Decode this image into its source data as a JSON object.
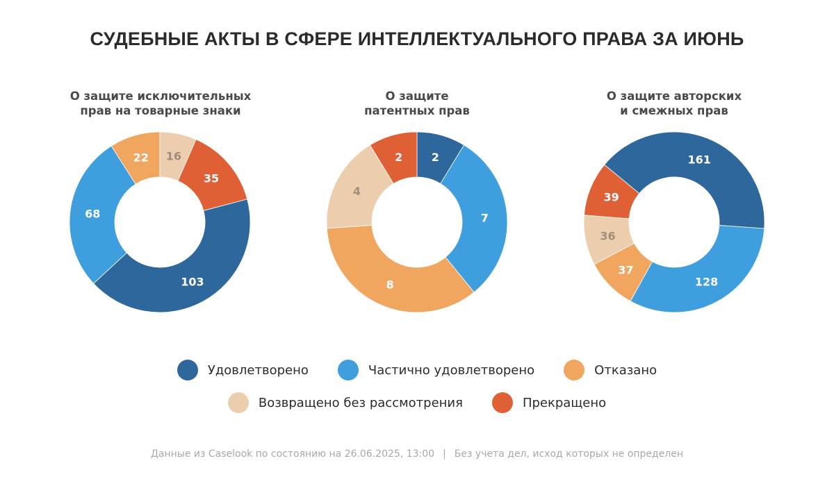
{
  "colors": {
    "satisfied": "#2d679c",
    "partially": "#3f9ede",
    "refused": "#f1a65f",
    "returned": "#ecceaf",
    "terminated": "#df6035",
    "label_light": "#ffffff",
    "label_dark": "#9e8e7e"
  },
  "chart_data": {
    "type": "pie",
    "title": "СУДЕБНЫЕ АКТЫ В СФЕРЕ ИНТЕЛЛЕКТУАЛЬНОГО ПРАВА ЗА ИЮНЬ",
    "legend_position": "bottom",
    "legend": [
      {
        "key": "satisfied",
        "label": "Удовлетворено"
      },
      {
        "key": "partially",
        "label": "Частично удовлетворено"
      },
      {
        "key": "refused",
        "label": "Отказано"
      },
      {
        "key": "returned",
        "label": "Возвращено без рассмотрения"
      },
      {
        "key": "terminated",
        "label": "Прекращено"
      }
    ],
    "charts": [
      {
        "id": "trademarks",
        "subtitle": "О защите исключительных\nправ на товарные знаки",
        "start_angle_deg": 0,
        "slices": [
          {
            "key": "returned",
            "value": 16
          },
          {
            "key": "terminated",
            "value": 35
          },
          {
            "key": "satisfied",
            "value": 103
          },
          {
            "key": "partially",
            "value": 68
          },
          {
            "key": "refused",
            "value": 22
          }
        ]
      },
      {
        "id": "patents",
        "subtitle": "О защите\nпатентных прав",
        "start_angle_deg": 0,
        "slices": [
          {
            "key": "satisfied",
            "value": 2
          },
          {
            "key": "partially",
            "value": 7
          },
          {
            "key": "refused",
            "value": 8
          },
          {
            "key": "returned",
            "value": 4
          },
          {
            "key": "terminated",
            "value": 2
          }
        ]
      },
      {
        "id": "copyright",
        "subtitle": "О защите авторских\nи смежных прав",
        "start_angle_deg": -50.5,
        "slices": [
          {
            "key": "satisfied",
            "value": 161
          },
          {
            "key": "partially",
            "value": 128
          },
          {
            "key": "refused",
            "value": 37
          },
          {
            "key": "returned",
            "value": 36
          },
          {
            "key": "terminated",
            "value": 39
          }
        ]
      }
    ]
  },
  "footer": {
    "source": "Данные из Caselook по состоянию на 26.06.2025, 13:00",
    "separator": "|",
    "note": "Без учета дел, исход которых не определен"
  }
}
